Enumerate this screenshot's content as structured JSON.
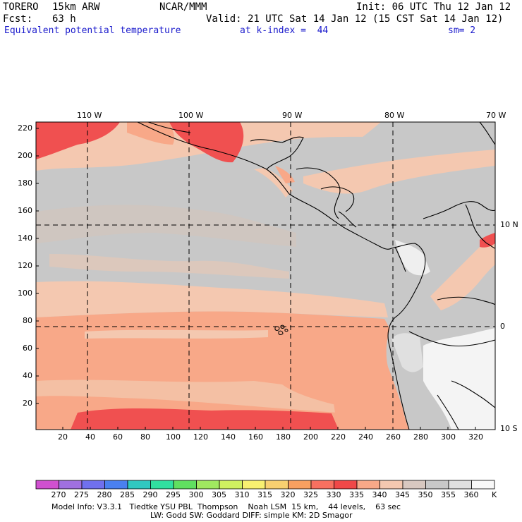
{
  "header": {
    "model": "TORERO",
    "resolution": "15km ARW",
    "center": "NCAR/MMM",
    "init": "Init: 06 UTC Thu 12 Jan 12",
    "fcst_label": "Fcst:",
    "fcst_value": "63 h",
    "valid": "Valid: 21 UTC Sat 14 Jan 12 (15 CST Sat 14 Jan 12)",
    "field": "Equivalent potential temperature",
    "level": "at k-index =  44",
    "smoothing": "sm= 2"
  },
  "map": {
    "lon_labels": [
      "110 W",
      "100 W",
      "90 W",
      "80 W",
      "70 W"
    ],
    "lat_labels": [
      "10 N",
      "0",
      "10 S"
    ],
    "y_ticks": [
      "220",
      "200",
      "180",
      "160",
      "140",
      "120",
      "100",
      "80",
      "60",
      "40",
      "20"
    ],
    "x_ticks": [
      "20",
      "40",
      "60",
      "80",
      "100",
      "120",
      "140",
      "160",
      "180",
      "200",
      "220",
      "240",
      "260",
      "280",
      "300",
      "320"
    ]
  },
  "colorbar": {
    "labels": [
      "270",
      "275",
      "280",
      "285",
      "290",
      "295",
      "300",
      "305",
      "310",
      "315",
      "320",
      "325",
      "330",
      "335",
      "340",
      "345",
      "350",
      "355",
      "360"
    ],
    "unit": "K",
    "colors": [
      "#d050d0",
      "#a070e0",
      "#7070ee",
      "#4a80f0",
      "#30c8c0",
      "#30e0a0",
      "#60e060",
      "#a0e860",
      "#d0f060",
      "#f8f070",
      "#f8d070",
      "#f8a060",
      "#f87060",
      "#f04848",
      "#f8a888",
      "#f4c8b0",
      "#d8c8c0",
      "#c8c8c8",
      "#e0e0e0",
      "#f8f8f8"
    ]
  },
  "footer": {
    "line1": "Model Info: V3.3.1   Tiedtke YSU PBL  Thompson    Noah LSM  15 km,    44 levels,    63 sec",
    "line2": "LW: Godd SW: Goddard DIFF: simple KM: 2D Smagor"
  }
}
